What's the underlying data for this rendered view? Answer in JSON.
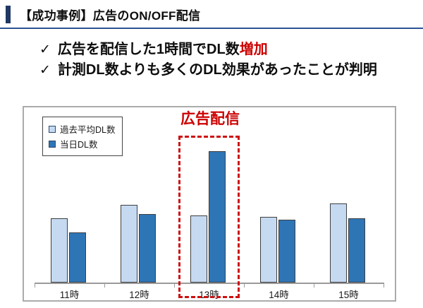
{
  "header": {
    "title": "【成功事例】広告のON/OFF配信"
  },
  "bullets": [
    {
      "check": "✓",
      "text": "広告を配信した1時間でDL数",
      "highlight": "増加"
    },
    {
      "check": "✓",
      "text": "計測DL数よりも多くのDL効果があったことが判明",
      "highlight": ""
    }
  ],
  "chart_data": {
    "type": "bar",
    "categories": [
      "11時",
      "12時",
      "13時",
      "14時",
      "15時"
    ],
    "series": [
      {
        "name": "過去平均DL数",
        "color": "#C5D9F1",
        "border_color": "#3F3F3F",
        "values": [
          49,
          59,
          51,
          50,
          60
        ]
      },
      {
        "name": "当日DL数",
        "color": "#2E75B6",
        "border_color": "#3F3F3F",
        "values": [
          38,
          52,
          100,
          48,
          49
        ]
      }
    ],
    "value_axis_note": "no numeric y-axis shown; values are relative (tallest bar = 100)",
    "ylim": [
      0,
      110
    ],
    "gridlines": false,
    "y_axis_visible": false,
    "legend_position": "top-left-inside",
    "annotation": {
      "label": "広告配信",
      "category": "13時",
      "style": "red-dashed-box",
      "color": "#CC0000"
    }
  },
  "colors": {
    "accent_navy": "#1F3864",
    "header_rule_blue": "#2E5395",
    "highlight_red": "#CC0000",
    "axis_gray": "#9A9A9A",
    "frame_gray": "#ABABAB"
  }
}
